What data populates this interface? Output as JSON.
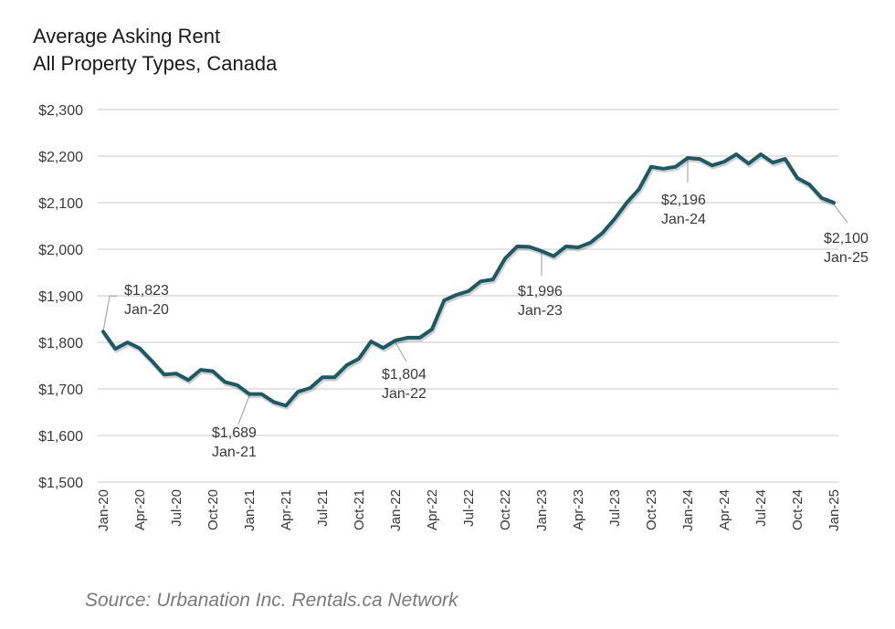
{
  "chart_data": {
    "type": "line",
    "title": "Average Asking Rent",
    "subtitle": "All Property Types, Canada",
    "xlabel": "",
    "ylabel": "",
    "ylim": [
      1500,
      2300
    ],
    "yticks": [
      1500,
      1600,
      1700,
      1800,
      1900,
      2000,
      2100,
      2200,
      2300
    ],
    "ytick_labels": [
      "$1,500",
      "$1,600",
      "$1,700",
      "$1,800",
      "$1,900",
      "$2,000",
      "$2,100",
      "$2,200",
      "$2,300"
    ],
    "xtick_labels": [
      "Jan-20",
      "Apr-20",
      "Jul-20",
      "Oct-20",
      "Jan-21",
      "Apr-21",
      "Jul-21",
      "Oct-21",
      "Jan-22",
      "Apr-22",
      "Jul-22",
      "Oct-22",
      "Jan-23",
      "Apr-23",
      "Jul-23",
      "Oct-23",
      "Jan-24",
      "Apr-24",
      "Jul-24",
      "Oct-24",
      "Jan-25"
    ],
    "grid": true,
    "legend": "none",
    "series": [
      {
        "name": "Average Asking Rent",
        "color": "#1e5963",
        "x": [
          "Jan-20",
          "Feb-20",
          "Mar-20",
          "Apr-20",
          "May-20",
          "Jun-20",
          "Jul-20",
          "Aug-20",
          "Sep-20",
          "Oct-20",
          "Nov-20",
          "Dec-20",
          "Jan-21",
          "Feb-21",
          "Mar-21",
          "Apr-21",
          "May-21",
          "Jun-21",
          "Jul-21",
          "Aug-21",
          "Sep-21",
          "Oct-21",
          "Nov-21",
          "Dec-21",
          "Jan-22",
          "Feb-22",
          "Mar-22",
          "Apr-22",
          "May-22",
          "Jun-22",
          "Jul-22",
          "Aug-22",
          "Sep-22",
          "Oct-22",
          "Nov-22",
          "Dec-22",
          "Jan-23",
          "Feb-23",
          "Mar-23",
          "Apr-23",
          "May-23",
          "Jun-23",
          "Jul-23",
          "Aug-23",
          "Sep-23",
          "Oct-23",
          "Nov-23",
          "Dec-23",
          "Jan-24",
          "Feb-24",
          "Mar-24",
          "Apr-24",
          "May-24",
          "Jun-24",
          "Jul-24",
          "Aug-24",
          "Sep-24",
          "Oct-24",
          "Nov-24",
          "Dec-24",
          "Jan-25"
        ],
        "values": [
          1823,
          1786,
          1800,
          1787,
          1760,
          1731,
          1733,
          1719,
          1741,
          1738,
          1715,
          1708,
          1689,
          1689,
          1672,
          1664,
          1694,
          1702,
          1725,
          1725,
          1751,
          1765,
          1802,
          1788,
          1804,
          1810,
          1810,
          1828,
          1890,
          1902,
          1910,
          1931,
          1935,
          1980,
          2006,
          2005,
          1996,
          1985,
          2006,
          2004,
          2014,
          2035,
          2065,
          2100,
          2129,
          2177,
          2173,
          2177,
          2196,
          2194,
          2180,
          2188,
          2204,
          2184,
          2204,
          2186,
          2194,
          2153,
          2139,
          2110,
          2100
        ]
      }
    ],
    "annotations": [
      {
        "index": 0,
        "value_label": "$1,823",
        "date_label": "Jan-20"
      },
      {
        "index": 12,
        "value_label": "$1,689",
        "date_label": "Jan-21"
      },
      {
        "index": 24,
        "value_label": "$1,804",
        "date_label": "Jan-22"
      },
      {
        "index": 36,
        "value_label": "$1,996",
        "date_label": "Jan-23"
      },
      {
        "index": 48,
        "value_label": "$2,196",
        "date_label": "Jan-24"
      },
      {
        "index": 60,
        "value_label": "$2,100",
        "date_label": "Jan-25"
      }
    ]
  },
  "header": {
    "title_line1": "Average Asking Rent",
    "title_line2": "All Property Types, Canada"
  },
  "footer": {
    "source": "Source: Urbanation Inc. Rentals.ca Network"
  }
}
